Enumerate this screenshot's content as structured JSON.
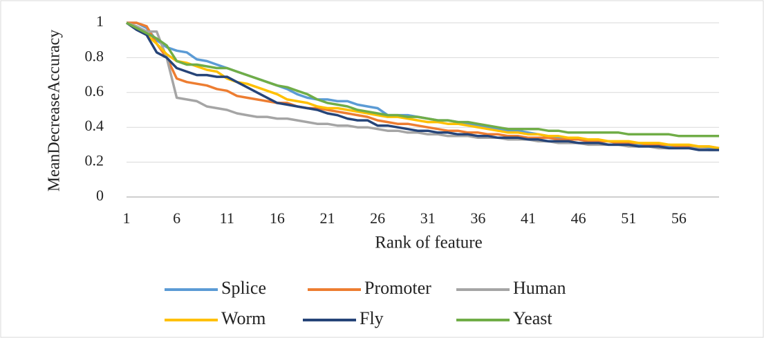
{
  "chart_data": {
    "type": "line",
    "x_label": "Rank of feature",
    "y_label": "MeanDecreaseAccuracy",
    "categories": [
      1,
      null,
      null,
      null,
      null,
      6,
      null,
      null,
      null,
      null,
      11,
      null,
      null,
      null,
      null,
      16,
      null,
      null,
      null,
      null,
      21,
      null,
      null,
      null,
      null,
      26,
      null,
      null,
      null,
      null,
      31,
      null,
      null,
      null,
      null,
      36,
      null,
      null,
      null,
      null,
      41,
      null,
      null,
      null,
      null,
      46,
      null,
      null,
      null,
      null,
      51,
      null,
      null,
      null,
      null,
      56,
      null,
      null,
      null,
      null
    ],
    "ylim": [
      0,
      1
    ],
    "yticks": [
      0,
      0.2,
      0.4,
      0.6,
      0.8,
      1
    ],
    "grid": true,
    "legend": "bottom",
    "series": [
      {
        "name": "Splice",
        "color": "#5b9bd5",
        "values": [
          1,
          1,
          0.97,
          0.9,
          0.86,
          0.84,
          0.83,
          0.79,
          0.78,
          0.76,
          0.74,
          0.72,
          0.7,
          0.68,
          0.66,
          0.64,
          0.62,
          0.59,
          0.57,
          0.56,
          0.56,
          0.55,
          0.55,
          0.53,
          0.52,
          0.51,
          0.47,
          0.47,
          0.47,
          0.46,
          0.45,
          0.44,
          0.44,
          0.43,
          0.42,
          0.41,
          0.4,
          0.39,
          0.38,
          0.38,
          0.37,
          0.36,
          0.35,
          0.34,
          0.34,
          0.33,
          0.33,
          0.32,
          0.32,
          0.31,
          0.31,
          0.3,
          0.3,
          0.3,
          0.29,
          0.29,
          0.29,
          0.28,
          0.28,
          0.28
        ]
      },
      {
        "name": "Promoter",
        "color": "#ed7d31",
        "values": [
          1,
          1,
          0.98,
          0.88,
          0.8,
          0.68,
          0.66,
          0.65,
          0.64,
          0.62,
          0.61,
          0.58,
          0.57,
          0.56,
          0.55,
          0.54,
          0.54,
          0.52,
          0.51,
          0.51,
          0.5,
          0.49,
          0.48,
          0.47,
          0.46,
          0.44,
          0.43,
          0.42,
          0.42,
          0.41,
          0.4,
          0.39,
          0.38,
          0.38,
          0.37,
          0.37,
          0.36,
          0.36,
          0.35,
          0.35,
          0.34,
          0.34,
          0.34,
          0.33,
          0.33,
          0.33,
          0.32,
          0.32,
          0.32,
          0.31,
          0.31,
          0.31,
          0.3,
          0.3,
          0.3,
          0.29,
          0.29,
          0.29,
          0.29,
          0.28
        ]
      },
      {
        "name": "Human",
        "color": "#a5a5a5",
        "values": [
          1,
          0.98,
          0.95,
          0.95,
          0.8,
          0.57,
          0.56,
          0.55,
          0.52,
          0.51,
          0.5,
          0.48,
          0.47,
          0.46,
          0.46,
          0.45,
          0.45,
          0.44,
          0.43,
          0.42,
          0.42,
          0.41,
          0.41,
          0.4,
          0.4,
          0.39,
          0.38,
          0.38,
          0.37,
          0.37,
          0.36,
          0.36,
          0.35,
          0.35,
          0.35,
          0.34,
          0.34,
          0.34,
          0.33,
          0.33,
          0.33,
          0.32,
          0.32,
          0.31,
          0.31,
          0.31,
          0.3,
          0.3,
          0.3,
          0.3,
          0.29,
          0.29,
          0.29,
          0.28,
          0.28,
          0.28,
          0.28,
          0.28,
          0.27,
          0.27
        ]
      },
      {
        "name": "Worm",
        "color": "#ffc000",
        "values": [
          1,
          0.97,
          0.93,
          0.88,
          0.82,
          0.78,
          0.77,
          0.75,
          0.73,
          0.72,
          0.68,
          0.66,
          0.65,
          0.63,
          0.61,
          0.59,
          0.56,
          0.55,
          0.54,
          0.52,
          0.51,
          0.51,
          0.5,
          0.49,
          0.48,
          0.47,
          0.46,
          0.46,
          0.45,
          0.44,
          0.43,
          0.43,
          0.42,
          0.42,
          0.41,
          0.4,
          0.39,
          0.38,
          0.37,
          0.37,
          0.36,
          0.36,
          0.35,
          0.35,
          0.34,
          0.34,
          0.33,
          0.33,
          0.32,
          0.32,
          0.32,
          0.31,
          0.31,
          0.31,
          0.3,
          0.3,
          0.3,
          0.29,
          0.29,
          0.28
        ]
      },
      {
        "name": "Fly",
        "color": "#264478",
        "values": [
          1,
          0.96,
          0.93,
          0.83,
          0.8,
          0.74,
          0.72,
          0.7,
          0.7,
          0.69,
          0.69,
          0.66,
          0.63,
          0.6,
          0.57,
          0.54,
          0.53,
          0.52,
          0.51,
          0.5,
          0.48,
          0.47,
          0.45,
          0.44,
          0.44,
          0.41,
          0.41,
          0.4,
          0.39,
          0.38,
          0.38,
          0.37,
          0.37,
          0.36,
          0.36,
          0.35,
          0.35,
          0.34,
          0.34,
          0.34,
          0.33,
          0.33,
          0.32,
          0.32,
          0.32,
          0.31,
          0.31,
          0.31,
          0.3,
          0.3,
          0.3,
          0.29,
          0.29,
          0.29,
          0.28,
          0.28,
          0.28,
          0.27,
          0.27,
          0.27
        ]
      },
      {
        "name": "Yeast",
        "color": "#70ad47",
        "values": [
          1,
          0.97,
          0.94,
          0.91,
          0.87,
          0.78,
          0.76,
          0.76,
          0.75,
          0.74,
          0.74,
          0.72,
          0.7,
          0.68,
          0.66,
          0.64,
          0.63,
          0.61,
          0.59,
          0.56,
          0.54,
          0.53,
          0.52,
          0.5,
          0.49,
          0.48,
          0.47,
          0.47,
          0.46,
          0.46,
          0.45,
          0.44,
          0.44,
          0.43,
          0.43,
          0.42,
          0.41,
          0.4,
          0.39,
          0.39,
          0.39,
          0.39,
          0.38,
          0.38,
          0.37,
          0.37,
          0.37,
          0.37,
          0.37,
          0.37,
          0.36,
          0.36,
          0.36,
          0.36,
          0.36,
          0.35,
          0.35,
          0.35,
          0.35,
          0.35
        ]
      }
    ]
  }
}
